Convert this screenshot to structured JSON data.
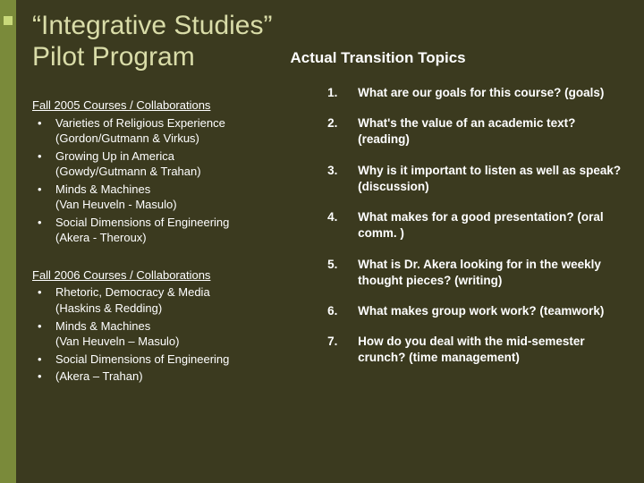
{
  "colors": {
    "background": "#3b3a1f",
    "accent_bar": "#7a8a3a",
    "accent_square": "#c9d97a",
    "title_color": "#d9dca8",
    "text_color": "#ffffff"
  },
  "title_line1": "“Integrative Studies”",
  "title_line2": "Pilot Program",
  "subtitle": "Actual Transition Topics",
  "left": {
    "sections": [
      {
        "heading": "Fall 2005 Courses / Collaborations",
        "items": [
          {
            "name": "Varieties of Religious Experience",
            "collab": "(Gordon/Gutmann & Virkus)"
          },
          {
            "name": "Growing Up in America",
            "collab": "(Gowdy/Gutmann & Trahan)"
          },
          {
            "name": "Minds & Machines",
            "collab": "(Van Heuveln - Masulo)"
          },
          {
            "name": "Social Dimensions of Engineering",
            "collab": "(Akera - Theroux)"
          }
        ]
      },
      {
        "heading": "Fall 2006 Courses / Collaborations",
        "items": [
          {
            "name": "Rhetoric, Democracy & Media",
            "collab": "(Haskins & Redding)"
          },
          {
            "name": "Minds & Machines",
            "collab": "(Van Heuveln – Masulo)"
          },
          {
            "name": "Social Dimensions of Engineering",
            "collab": ""
          },
          {
            "name": "(Akera – Trahan)",
            "collab": ""
          }
        ]
      }
    ]
  },
  "right": {
    "topics": [
      {
        "num": "1.",
        "text": "What are our goals for this course? (goals)"
      },
      {
        "num": "2.",
        "text": "What's the value of an academic text? (reading)"
      },
      {
        "num": "3.",
        "text": "Why is it important to listen as well as speak? (discussion)"
      },
      {
        "num": "4.",
        "text": "What makes for a good presentation? (oral comm. )"
      },
      {
        "num": "5.",
        "text": "What is Dr. Akera looking for in the weekly thought pieces? (writing)"
      },
      {
        "num": "6.",
        "text": "What makes group work work? (teamwork)"
      },
      {
        "num": "7.",
        "text": "How do you deal with the mid-semester crunch? (time management)"
      }
    ]
  }
}
